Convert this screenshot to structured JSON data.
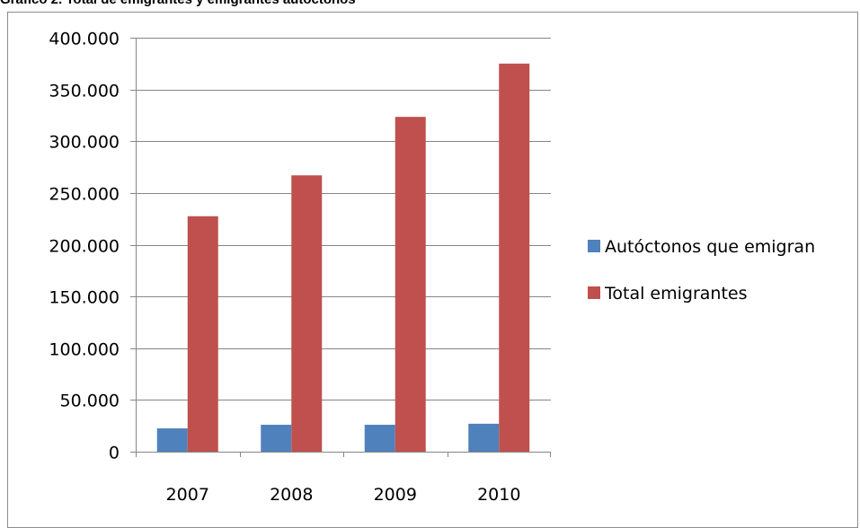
{
  "title": "Gráfico 2. Total de emigrantes y emigrantes autóctonos",
  "chart_data": {
    "type": "bar",
    "categories": [
      "2007",
      "2008",
      "2009",
      "2010"
    ],
    "series": [
      {
        "name": "Autóctonos que emigran",
        "color": "#4f81bd",
        "values": [
          22500,
          26000,
          26000,
          27000
        ]
      },
      {
        "name": "Total emigrantes",
        "color": "#c0504d",
        "values": [
          227500,
          267000,
          323500,
          375000
        ]
      }
    ],
    "ylim": [
      0,
      400000
    ],
    "y_ticks": [
      {
        "value": 0,
        "label": "0"
      },
      {
        "value": 50000,
        "label": "50.000"
      },
      {
        "value": 100000,
        "label": "100.000"
      },
      {
        "value": 150000,
        "label": "150.000"
      },
      {
        "value": 200000,
        "label": "200.000"
      },
      {
        "value": 250000,
        "label": "250.000"
      },
      {
        "value": 300000,
        "label": "300.000"
      },
      {
        "value": 350000,
        "label": "350.000"
      },
      {
        "value": 400000,
        "label": "400.000"
      }
    ],
    "grid": true,
    "legend_position": "right"
  }
}
